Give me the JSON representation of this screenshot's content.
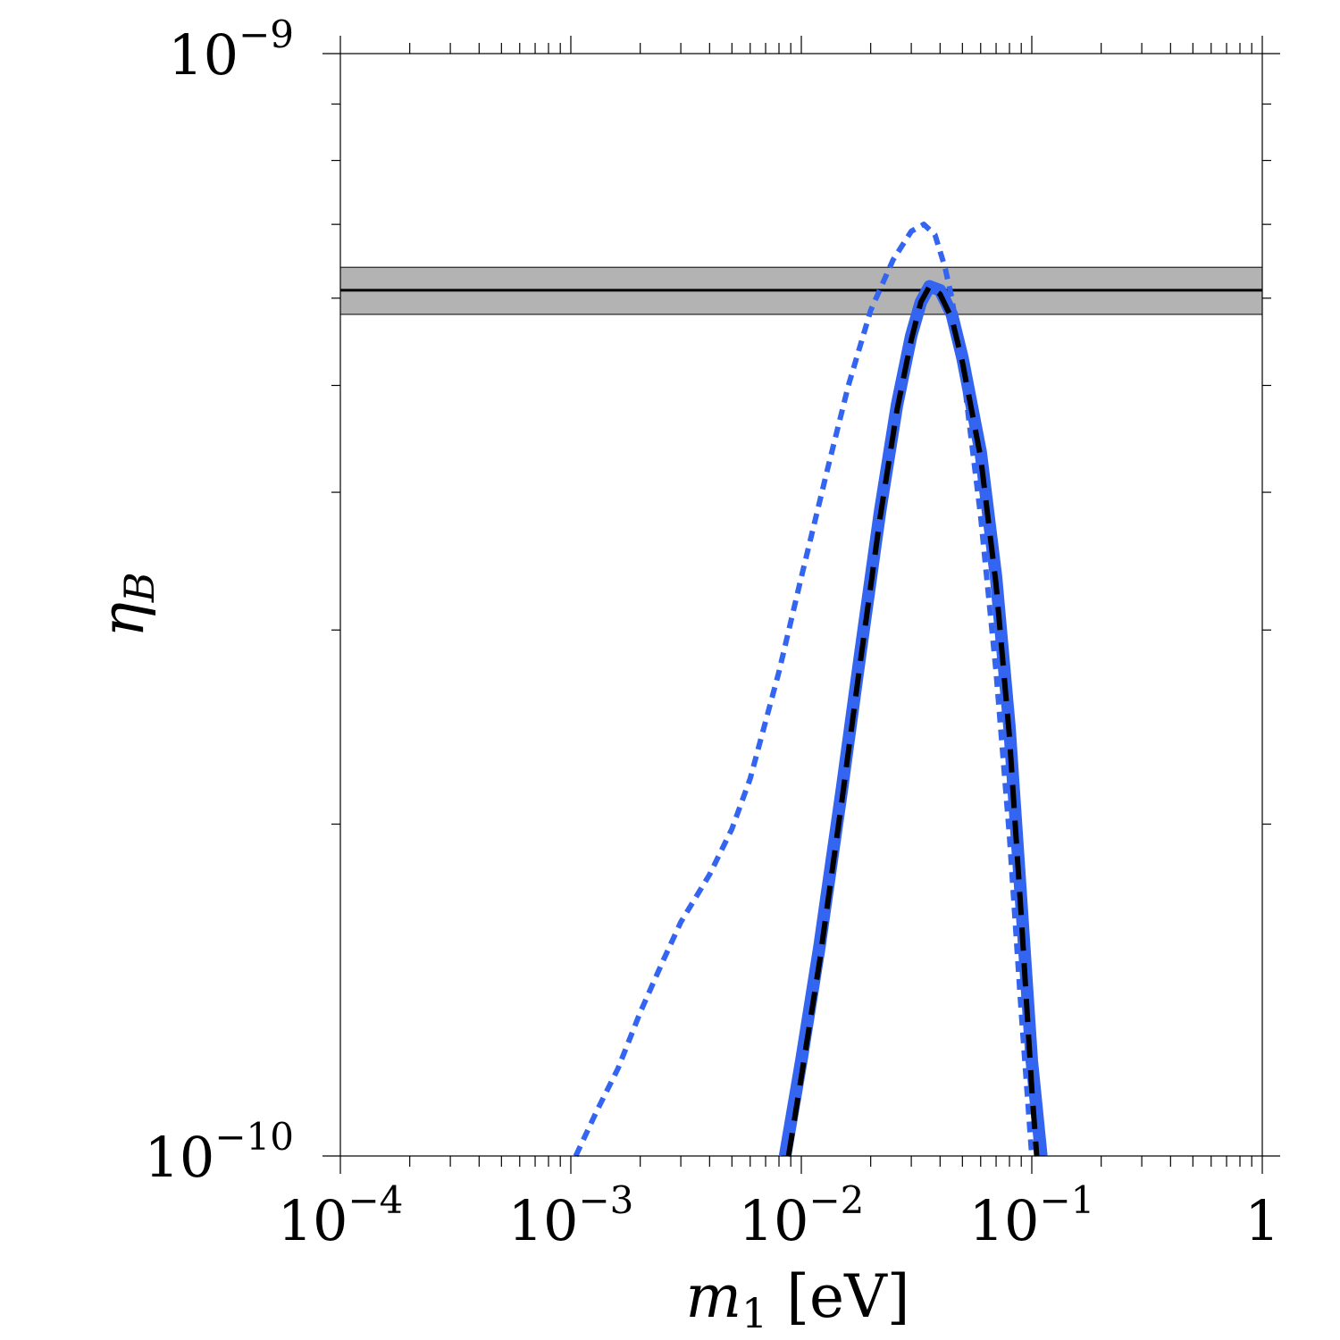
{
  "chart_data": {
    "type": "line",
    "x_scale": "log",
    "y_scale": "log",
    "xlim": [
      0.0001,
      1
    ],
    "ylim": [
      1e-10,
      1e-09
    ],
    "xlabel": "m_1 [eV]",
    "xlabel_main": "m",
    "xlabel_sub": "1",
    "xlabel_unit": " [eV]",
    "ylabel": "η_B",
    "ylabel_main": "η",
    "ylabel_sub": "B",
    "x_ticks": [
      {
        "value": 0.0001,
        "base": "10",
        "exp": "−4"
      },
      {
        "value": 0.001,
        "base": "10",
        "exp": "−3"
      },
      {
        "value": 0.01,
        "base": "10",
        "exp": "−2"
      },
      {
        "value": 0.1,
        "base": "10",
        "exp": "−1"
      },
      {
        "value": 1,
        "base": "1",
        "exp": ""
      }
    ],
    "y_ticks": [
      {
        "value": 1e-10,
        "base": "10",
        "exp": "−10"
      },
      {
        "value": 1e-09,
        "base": "10",
        "exp": "−9"
      }
    ],
    "y_minor_ticks": [
      2e-10,
      3e-10,
      4e-10,
      5e-10,
      6e-10,
      7e-10,
      8e-10,
      9e-10
    ],
    "observed_band": {
      "center": 6.1e-10,
      "low": 5.8e-10,
      "high": 6.4e-10,
      "color": "#b3b3b3"
    },
    "grid": false,
    "series": [
      {
        "style": "dotted",
        "color": "#3465f0",
        "x": [
          0.00105,
          0.0013,
          0.0016,
          0.002,
          0.0025,
          0.003,
          0.004,
          0.005,
          0.006,
          0.008,
          0.01,
          0.013,
          0.016,
          0.02,
          0.025,
          0.03,
          0.034,
          0.038,
          0.042,
          0.045,
          0.05,
          0.06,
          0.07,
          0.08,
          0.09,
          0.1
        ],
        "y": [
          1e-10,
          1.1e-10,
          1.2e-10,
          1.35e-10,
          1.5e-10,
          1.63e-10,
          1.8e-10,
          1.98e-10,
          2.2e-10,
          2.75e-10,
          3.35e-10,
          4.2e-10,
          5e-10,
          5.85e-10,
          6.5e-10,
          6.9e-10,
          7e-10,
          6.85e-10,
          6.4e-10,
          6e-10,
          5.2e-10,
          3.8e-10,
          2.75e-10,
          1.95e-10,
          1.35e-10,
          1e-10
        ]
      },
      {
        "style": "solid-thick",
        "color": "#3465f0",
        "x": [
          0.0085,
          0.01,
          0.012,
          0.015,
          0.018,
          0.022,
          0.026,
          0.03,
          0.033,
          0.036,
          0.04,
          0.045,
          0.05,
          0.06,
          0.07,
          0.08,
          0.09,
          0.1,
          0.11
        ],
        "y": [
          1e-10,
          1.22e-10,
          1.55e-10,
          2.15e-10,
          2.85e-10,
          3.85e-10,
          4.8e-10,
          5.55e-10,
          5.95e-10,
          6.15e-10,
          6.1e-10,
          5.8e-10,
          5.3e-10,
          4.35e-10,
          3.35e-10,
          2.45e-10,
          1.7e-10,
          1.22e-10,
          1e-10
        ]
      },
      {
        "style": "dashed",
        "color": "#000000",
        "x": [
          0.0088,
          0.01,
          0.012,
          0.015,
          0.018,
          0.022,
          0.026,
          0.03,
          0.033,
          0.036,
          0.04,
          0.045,
          0.05,
          0.06,
          0.07,
          0.08,
          0.09,
          0.1,
          0.105
        ],
        "y": [
          1e-10,
          1.18e-10,
          1.5e-10,
          2.1e-10,
          2.8e-10,
          3.8e-10,
          4.75e-10,
          5.5e-10,
          5.95e-10,
          6.15e-10,
          6.05e-10,
          5.75e-10,
          5.25e-10,
          4.3e-10,
          3.3e-10,
          2.4e-10,
          1.65e-10,
          1.15e-10,
          1e-10
        ]
      }
    ]
  }
}
